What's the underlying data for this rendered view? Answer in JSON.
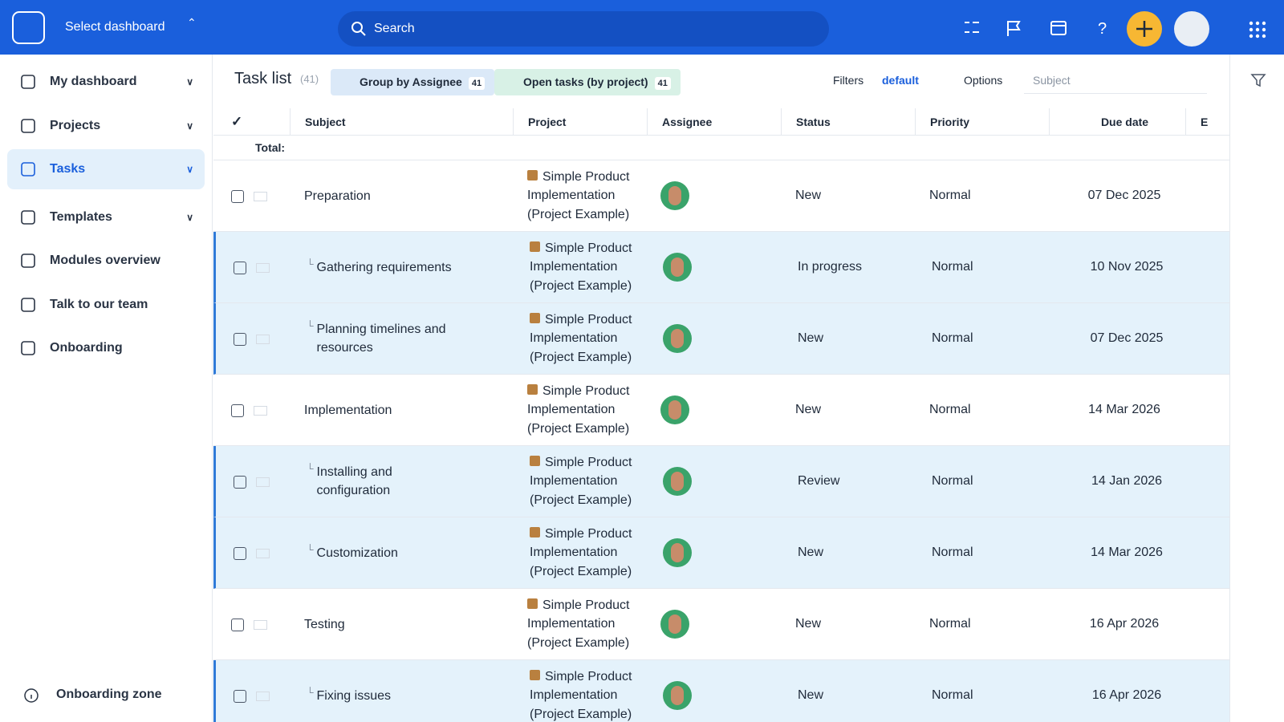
{
  "header": {
    "dashboard_select": "Select dashboard",
    "search_placeholder": "Search"
  },
  "sidebar": {
    "items": [
      "My dashboard",
      "Projects",
      "Tasks",
      "Templates",
      "Modules overview",
      "Talk to our team",
      "Onboarding"
    ],
    "active": 2,
    "footer": "Onboarding zone"
  },
  "toolbar": {
    "title": "Task list",
    "count": "(41)",
    "group_button": "Group by Assignee",
    "group_count": "41",
    "filter_button": "Open tasks (by project)",
    "filter_count": "41",
    "filters": "Filters",
    "filter_preset": "default",
    "options": "Options",
    "subject_placeholder": "Subject"
  },
  "table": {
    "columns": [
      "Subject",
      "Project",
      "Assignee",
      "Status",
      "Priority",
      "Due date",
      "E"
    ],
    "total_label": "Total:",
    "rows": [
      {
        "subject": "Preparation",
        "child": false,
        "project": "Simple Product Implementation (Project Example)",
        "status": "New",
        "priority": "Normal",
        "due": "07 Dec 2025"
      },
      {
        "subject": "Gathering requirements",
        "child": true,
        "project": "Simple Product Implementation (Project Example)",
        "status": "In progress",
        "priority": "Normal",
        "due": "10 Nov 2025"
      },
      {
        "subject": "Planning timelines and resources",
        "child": true,
        "project": "Simple Product Implementation (Project Example)",
        "status": "New",
        "priority": "Normal",
        "due": "07 Dec 2025"
      },
      {
        "subject": "Implementation",
        "child": false,
        "project": "Simple Product Implementation (Project Example)",
        "status": "New",
        "priority": "Normal",
        "due": "14 Mar 2026"
      },
      {
        "subject": "Installing and configuration",
        "child": true,
        "project": "Simple Product Implementation (Project Example)",
        "status": "Review",
        "priority": "Normal",
        "due": "14 Jan 2026"
      },
      {
        "subject": "Customization",
        "child": true,
        "project": "Simple Product Implementation (Project Example)",
        "status": "New",
        "priority": "Normal",
        "due": "14 Mar 2026"
      },
      {
        "subject": "Testing",
        "child": false,
        "project": "Simple Product Implementation (Project Example)",
        "status": "New",
        "priority": "Normal",
        "due": "16 Apr 2026"
      },
      {
        "subject": "Fixing issues",
        "child": true,
        "project": "Simple Product Implementation (Project Example)",
        "status": "New",
        "priority": "Normal",
        "due": "16 Apr 2026"
      }
    ]
  }
}
